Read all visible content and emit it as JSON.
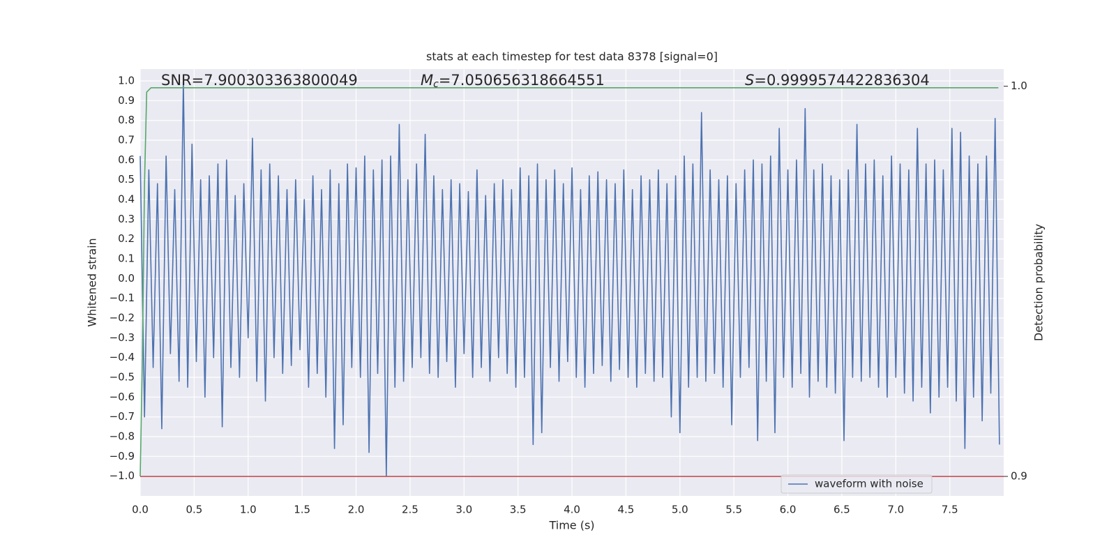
{
  "chart_data": {
    "type": "line",
    "title": "stats at each timestep for test data 8378 [signal=0]",
    "annotations": [
      [
        "SNR=7.900303363800049"
      ],
      [
        "M",
        "c",
        "=7.050656318664551"
      ],
      [
        "S",
        "=0.9999574422836304"
      ]
    ],
    "xlabel": "Time (s)",
    "ylabel": "Whitened strain",
    "y2label": "Detection probability",
    "xlim": [
      0,
      7.9995
    ],
    "ylim": [
      -1.1,
      1.06
    ],
    "y2lim": [
      0.895,
      1.0044
    ],
    "xticks": [
      {
        "value": 0,
        "label": "0.0"
      },
      0.5,
      {
        "value": 1,
        "label": "1.0"
      },
      1.5,
      {
        "value": 2,
        "label": "2.0"
      },
      2.5,
      {
        "value": 3,
        "label": "3.0"
      },
      3.5,
      {
        "value": 4,
        "label": "4.0"
      },
      4.5,
      {
        "value": 5,
        "label": "5.0"
      },
      5.5,
      {
        "value": 6,
        "label": "6.0"
      },
      6.5,
      {
        "value": 7,
        "label": "7.0"
      },
      7.5
    ],
    "yticks": [
      {
        "value": -1,
        "label": "−1.0"
      },
      {
        "value": -0.9,
        "label": "−0.9"
      },
      {
        "value": -0.8,
        "label": "−0.8"
      },
      {
        "value": -0.7,
        "label": "−0.7"
      },
      {
        "value": -0.6,
        "label": "−0.6"
      },
      {
        "value": -0.5,
        "label": "−0.5"
      },
      {
        "value": -0.4,
        "label": "−0.4"
      },
      {
        "value": -0.3,
        "label": "−0.3"
      },
      {
        "value": -0.2,
        "label": "−0.2"
      },
      {
        "value": -0.1,
        "label": "−0.1"
      },
      {
        "value": 0,
        "label": "0.0"
      },
      0.1,
      0.2,
      0.3,
      0.4,
      0.5,
      0.6,
      0.7,
      0.8,
      0.9,
      {
        "value": 1,
        "label": "1.0"
      }
    ],
    "y2ticks": [
      0.9,
      {
        "value": 1,
        "label": "1.0"
      }
    ],
    "grid": true,
    "legend": "lower right",
    "series": [
      {
        "name": "waveform with noise",
        "color": "#4c72b0",
        "axis": "y",
        "x": [
          0.0,
          0.04,
          0.08,
          0.12,
          0.16,
          0.2,
          0.24,
          0.28,
          0.32,
          0.36,
          0.4,
          0.44,
          0.48,
          0.52,
          0.56,
          0.6,
          0.64,
          0.68,
          0.72,
          0.76,
          0.8,
          0.84,
          0.88,
          0.92,
          0.96,
          1.0,
          1.04,
          1.08,
          1.12,
          1.16,
          1.2,
          1.24,
          1.28,
          1.32,
          1.36,
          1.4,
          1.44,
          1.48,
          1.52,
          1.56,
          1.6,
          1.64,
          1.68,
          1.72,
          1.76,
          1.8,
          1.84,
          1.88,
          1.92,
          1.96,
          2.0,
          2.04,
          2.08,
          2.12,
          2.16,
          2.2,
          2.24,
          2.28,
          2.32,
          2.36,
          2.4,
          2.44,
          2.48,
          2.52,
          2.56,
          2.6,
          2.64,
          2.68,
          2.72,
          2.76,
          2.8,
          2.84,
          2.88,
          2.92,
          2.96,
          3.0,
          3.04,
          3.08,
          3.12,
          3.16,
          3.2,
          3.24,
          3.28,
          3.32,
          3.36,
          3.4,
          3.44,
          3.48,
          3.52,
          3.56,
          3.6,
          3.64,
          3.68,
          3.72,
          3.76,
          3.8,
          3.84,
          3.88,
          3.92,
          3.96,
          4.0,
          4.04,
          4.08,
          4.12,
          4.16,
          4.2,
          4.24,
          4.28,
          4.32,
          4.36,
          4.4,
          4.44,
          4.48,
          4.52,
          4.56,
          4.6,
          4.64,
          4.68,
          4.72,
          4.76,
          4.8,
          4.84,
          4.88,
          4.92,
          4.96,
          5.0,
          5.04,
          5.08,
          5.12,
          5.16,
          5.2,
          5.24,
          5.28,
          5.32,
          5.36,
          5.4,
          5.44,
          5.48,
          5.52,
          5.56,
          5.6,
          5.64,
          5.68,
          5.72,
          5.76,
          5.8,
          5.84,
          5.88,
          5.92,
          5.96,
          6.0,
          6.04,
          6.08,
          6.12,
          6.16,
          6.2,
          6.24,
          6.28,
          6.32,
          6.36,
          6.4,
          6.44,
          6.48,
          6.52,
          6.56,
          6.6,
          6.64,
          6.68,
          6.72,
          6.76,
          6.8,
          6.84,
          6.88,
          6.92,
          6.96,
          7.0,
          7.04,
          7.08,
          7.12,
          7.16,
          7.2,
          7.24,
          7.28,
          7.32,
          7.36,
          7.4,
          7.44,
          7.48,
          7.52,
          7.56,
          7.6,
          7.64,
          7.68,
          7.72,
          7.76,
          7.8,
          7.84,
          7.88,
          7.92,
          7.96
        ],
        "values": [
          0.62,
          -0.7,
          0.55,
          -0.45,
          0.48,
          -0.76,
          0.62,
          -0.38,
          0.45,
          -0.52,
          1.0,
          -0.55,
          0.68,
          -0.42,
          0.5,
          -0.6,
          0.52,
          -0.4,
          0.58,
          -0.75,
          0.6,
          -0.45,
          0.42,
          -0.5,
          0.48,
          -0.3,
          0.71,
          -0.52,
          0.55,
          -0.62,
          0.58,
          -0.4,
          0.52,
          -0.48,
          0.45,
          -0.44,
          0.5,
          -0.36,
          0.4,
          -0.55,
          0.52,
          -0.48,
          0.45,
          -0.6,
          0.55,
          -0.86,
          0.48,
          -0.74,
          0.58,
          -0.45,
          0.56,
          -0.5,
          0.62,
          -0.88,
          0.55,
          -0.48,
          0.6,
          -1.0,
          0.62,
          -0.55,
          0.78,
          -0.52,
          0.5,
          -0.45,
          0.58,
          -0.4,
          0.73,
          -0.48,
          0.52,
          -0.5,
          0.45,
          -0.42,
          0.5,
          -0.55,
          0.48,
          -0.38,
          0.44,
          -0.5,
          0.55,
          -0.45,
          0.42,
          -0.52,
          0.48,
          -0.4,
          0.5,
          -0.48,
          0.45,
          -0.55,
          0.56,
          -0.5,
          0.52,
          -0.84,
          0.58,
          -0.78,
          0.5,
          -0.45,
          0.55,
          -0.52,
          0.48,
          -0.42,
          0.56,
          -0.5,
          0.45,
          -0.55,
          0.52,
          -0.48,
          0.54,
          -0.44,
          0.5,
          -0.52,
          0.48,
          -0.46,
          0.55,
          -0.5,
          0.45,
          -0.55,
          0.52,
          -0.48,
          0.5,
          -0.52,
          0.55,
          -0.5,
          0.48,
          -0.7,
          0.52,
          -0.78,
          0.62,
          -0.55,
          0.58,
          -0.5,
          0.84,
          -0.52,
          0.55,
          -0.48,
          0.5,
          -0.55,
          0.52,
          -0.74,
          0.48,
          -0.5,
          0.55,
          -0.45,
          0.6,
          -0.82,
          0.58,
          -0.52,
          0.62,
          -0.78,
          0.76,
          -0.5,
          0.55,
          -0.55,
          0.6,
          -0.48,
          0.86,
          -0.6,
          0.55,
          -0.52,
          0.58,
          -0.55,
          0.52,
          -0.58,
          0.5,
          -0.82,
          0.55,
          -0.5,
          0.78,
          -0.52,
          0.58,
          -0.5,
          0.6,
          -0.55,
          0.52,
          -0.6,
          0.62,
          -0.5,
          0.58,
          -0.58,
          0.55,
          -0.62,
          0.76,
          -0.55,
          0.58,
          -0.68,
          0.6,
          -0.6,
          0.55,
          -0.55,
          0.76,
          -0.62,
          0.74,
          -0.86,
          0.62,
          -0.6,
          0.58,
          -0.72,
          0.62,
          -0.58,
          0.81,
          -0.84
        ]
      },
      {
        "color": "#55a868",
        "axis": "y2",
        "x": [
          0,
          0.02,
          0.04,
          0.06,
          0.1,
          7.95
        ],
        "values": [
          0.9,
          0.93,
          0.975,
          0.9985,
          0.9996,
          0.9996
        ]
      },
      {
        "color": "#c44e52",
        "axis": "y2",
        "x": [
          0,
          7.9995
        ],
        "values": [
          0.9,
          0.9
        ]
      }
    ]
  }
}
